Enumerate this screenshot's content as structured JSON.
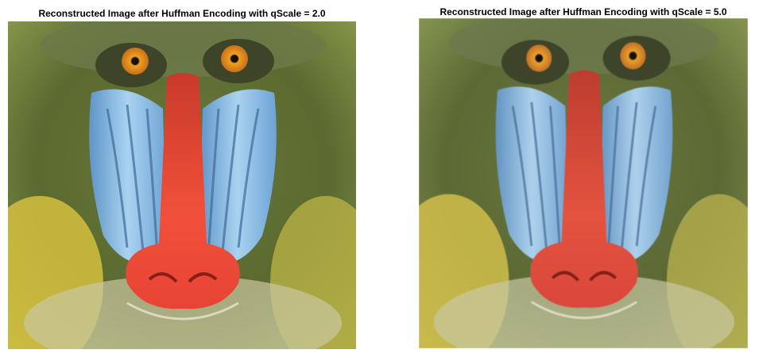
{
  "panels": [
    {
      "title": "Reconstructed Image after Huffman Encoding with qScale = 2.0",
      "image_subject": "mandrill-face",
      "qscale": 2.0
    },
    {
      "title": "Reconstructed Image after Huffman Encoding with qScale = 5.0",
      "image_subject": "mandrill-face",
      "qscale": 5.0
    }
  ],
  "colors": {
    "fur_dark": "#4a5a2a",
    "fur_light": "#8c9a4a",
    "cheek_blue": "#7fb3e0",
    "nose_red": "#f04a3a",
    "eye_orange": "#e8961e",
    "beard_yellow": "#d8c34a"
  }
}
